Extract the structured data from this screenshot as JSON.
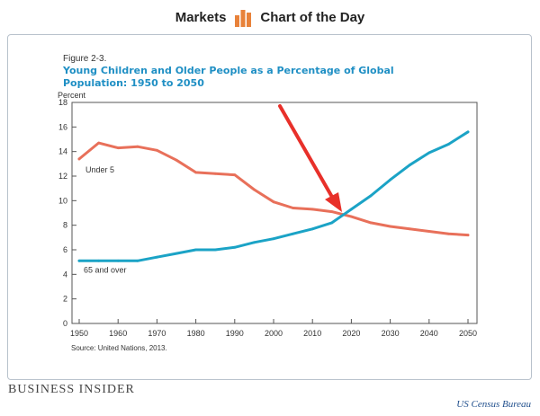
{
  "header": {
    "left": "Markets",
    "right": "Chart of the Day",
    "logo_icon": "bar-chart-icon",
    "logo_color": "#e8823a"
  },
  "figure": {
    "label": "Figure 2-3.",
    "title": "Young Children and Older People as a Percentage of Global Population: 1950 to 2050",
    "source": "Source: United Nations, 2013."
  },
  "footer": {
    "brand": "BUSINESS INSIDER",
    "credit": "US Census Bureau"
  },
  "annotation": {
    "type": "arrow",
    "icon": "arrow-icon",
    "color": "#e8302a",
    "points_to": "crossover of Under 5 and 65 and over around 2018"
  },
  "chart_data": {
    "type": "line",
    "title": "Young Children and Older People as a Percentage of Global Population: 1950 to 2050",
    "xlabel": "",
    "ylabel": "Percent",
    "xlim": [
      1950,
      2050
    ],
    "ylim": [
      0,
      18
    ],
    "xticks": [
      1950,
      1960,
      1970,
      1980,
      1990,
      2000,
      2010,
      2020,
      2030,
      2040,
      2050
    ],
    "yticks": [
      0,
      2,
      4,
      6,
      8,
      10,
      12,
      14,
      16,
      18
    ],
    "grid": false,
    "legend": "inline labels",
    "series": [
      {
        "name": "Under 5",
        "color": "#e8705a",
        "x": [
          1950,
          1955,
          1960,
          1965,
          1970,
          1975,
          1980,
          1985,
          1990,
          1995,
          2000,
          2005,
          2010,
          2015,
          2020,
          2025,
          2030,
          2035,
          2040,
          2045,
          2050
        ],
        "y": [
          13.4,
          14.7,
          14.3,
          14.4,
          14.1,
          13.3,
          12.3,
          12.2,
          12.1,
          10.9,
          9.9,
          9.4,
          9.3,
          9.1,
          8.7,
          8.2,
          7.9,
          7.7,
          7.5,
          7.3,
          7.2
        ]
      },
      {
        "name": "65 and over",
        "color": "#1ba3c6",
        "x": [
          1950,
          1955,
          1960,
          1965,
          1970,
          1975,
          1980,
          1985,
          1990,
          1995,
          2000,
          2005,
          2010,
          2015,
          2020,
          2025,
          2030,
          2035,
          2040,
          2045,
          2050
        ],
        "y": [
          5.1,
          5.1,
          5.1,
          5.1,
          5.4,
          5.7,
          6.0,
          6.0,
          6.2,
          6.6,
          6.9,
          7.3,
          7.7,
          8.2,
          9.3,
          10.4,
          11.7,
          12.9,
          13.9,
          14.6,
          15.6
        ]
      }
    ]
  }
}
